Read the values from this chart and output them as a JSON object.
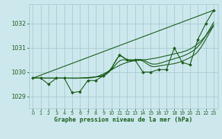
{
  "background_color": "#cce8ed",
  "grid_color": "#aacdd4",
  "line_color": "#1a5c1a",
  "text_color": "#1a5c1a",
  "xlabel": "Graphe pression niveau de la mer (hPa)",
  "ylim": [
    1028.5,
    1032.8
  ],
  "xlim": [
    -0.5,
    23.5
  ],
  "yticks": [
    1029,
    1030,
    1031,
    1032
  ],
  "xticks": [
    0,
    1,
    2,
    3,
    4,
    5,
    6,
    7,
    8,
    9,
    10,
    11,
    12,
    13,
    14,
    15,
    16,
    17,
    18,
    19,
    20,
    21,
    22,
    23
  ],
  "series_main": {
    "x": [
      0,
      1,
      2,
      3,
      4,
      5,
      6,
      7,
      8,
      9,
      10,
      11,
      12,
      13,
      14,
      15,
      16,
      17,
      18,
      19,
      20,
      21,
      22,
      23
    ],
    "y": [
      1029.75,
      1029.75,
      1029.5,
      1029.75,
      1029.75,
      1029.15,
      1029.2,
      1029.65,
      1029.65,
      1029.85,
      1030.15,
      1030.7,
      1030.5,
      1030.5,
      1030.0,
      1030.0,
      1030.1,
      1030.1,
      1031.0,
      1030.4,
      1030.3,
      1031.35,
      1032.0,
      1032.55
    ]
  },
  "series_straight": {
    "x": [
      0,
      23
    ],
    "y": [
      1029.75,
      1032.55
    ]
  },
  "series_smooth1": {
    "x": [
      0,
      2,
      4,
      6,
      8,
      10,
      12,
      14,
      16,
      18,
      20,
      22,
      23
    ],
    "y": [
      1029.75,
      1029.75,
      1029.75,
      1029.75,
      1029.8,
      1030.1,
      1030.4,
      1030.5,
      1030.6,
      1030.75,
      1030.95,
      1031.5,
      1031.95
    ]
  },
  "series_smooth2": {
    "x": [
      0,
      2,
      4,
      6,
      8,
      10,
      11,
      12,
      13,
      14,
      15,
      16,
      17,
      18,
      19,
      20,
      21,
      22,
      23
    ],
    "y": [
      1029.75,
      1029.75,
      1029.75,
      1029.75,
      1029.8,
      1030.15,
      1030.65,
      1030.5,
      1030.5,
      1030.5,
      1030.35,
      1030.35,
      1030.45,
      1030.55,
      1030.65,
      1030.8,
      1031.05,
      1031.5,
      1032.05
    ]
  },
  "series_smooth3": {
    "x": [
      0,
      2,
      4,
      6,
      8,
      10,
      11,
      12,
      13,
      14,
      15,
      16,
      17,
      18,
      19,
      20,
      21,
      22,
      23
    ],
    "y": [
      1029.75,
      1029.75,
      1029.75,
      1029.75,
      1029.8,
      1030.1,
      1030.45,
      1030.5,
      1030.5,
      1030.45,
      1030.25,
      1030.25,
      1030.3,
      1030.35,
      1030.45,
      1030.6,
      1030.85,
      1031.35,
      1031.9
    ]
  }
}
